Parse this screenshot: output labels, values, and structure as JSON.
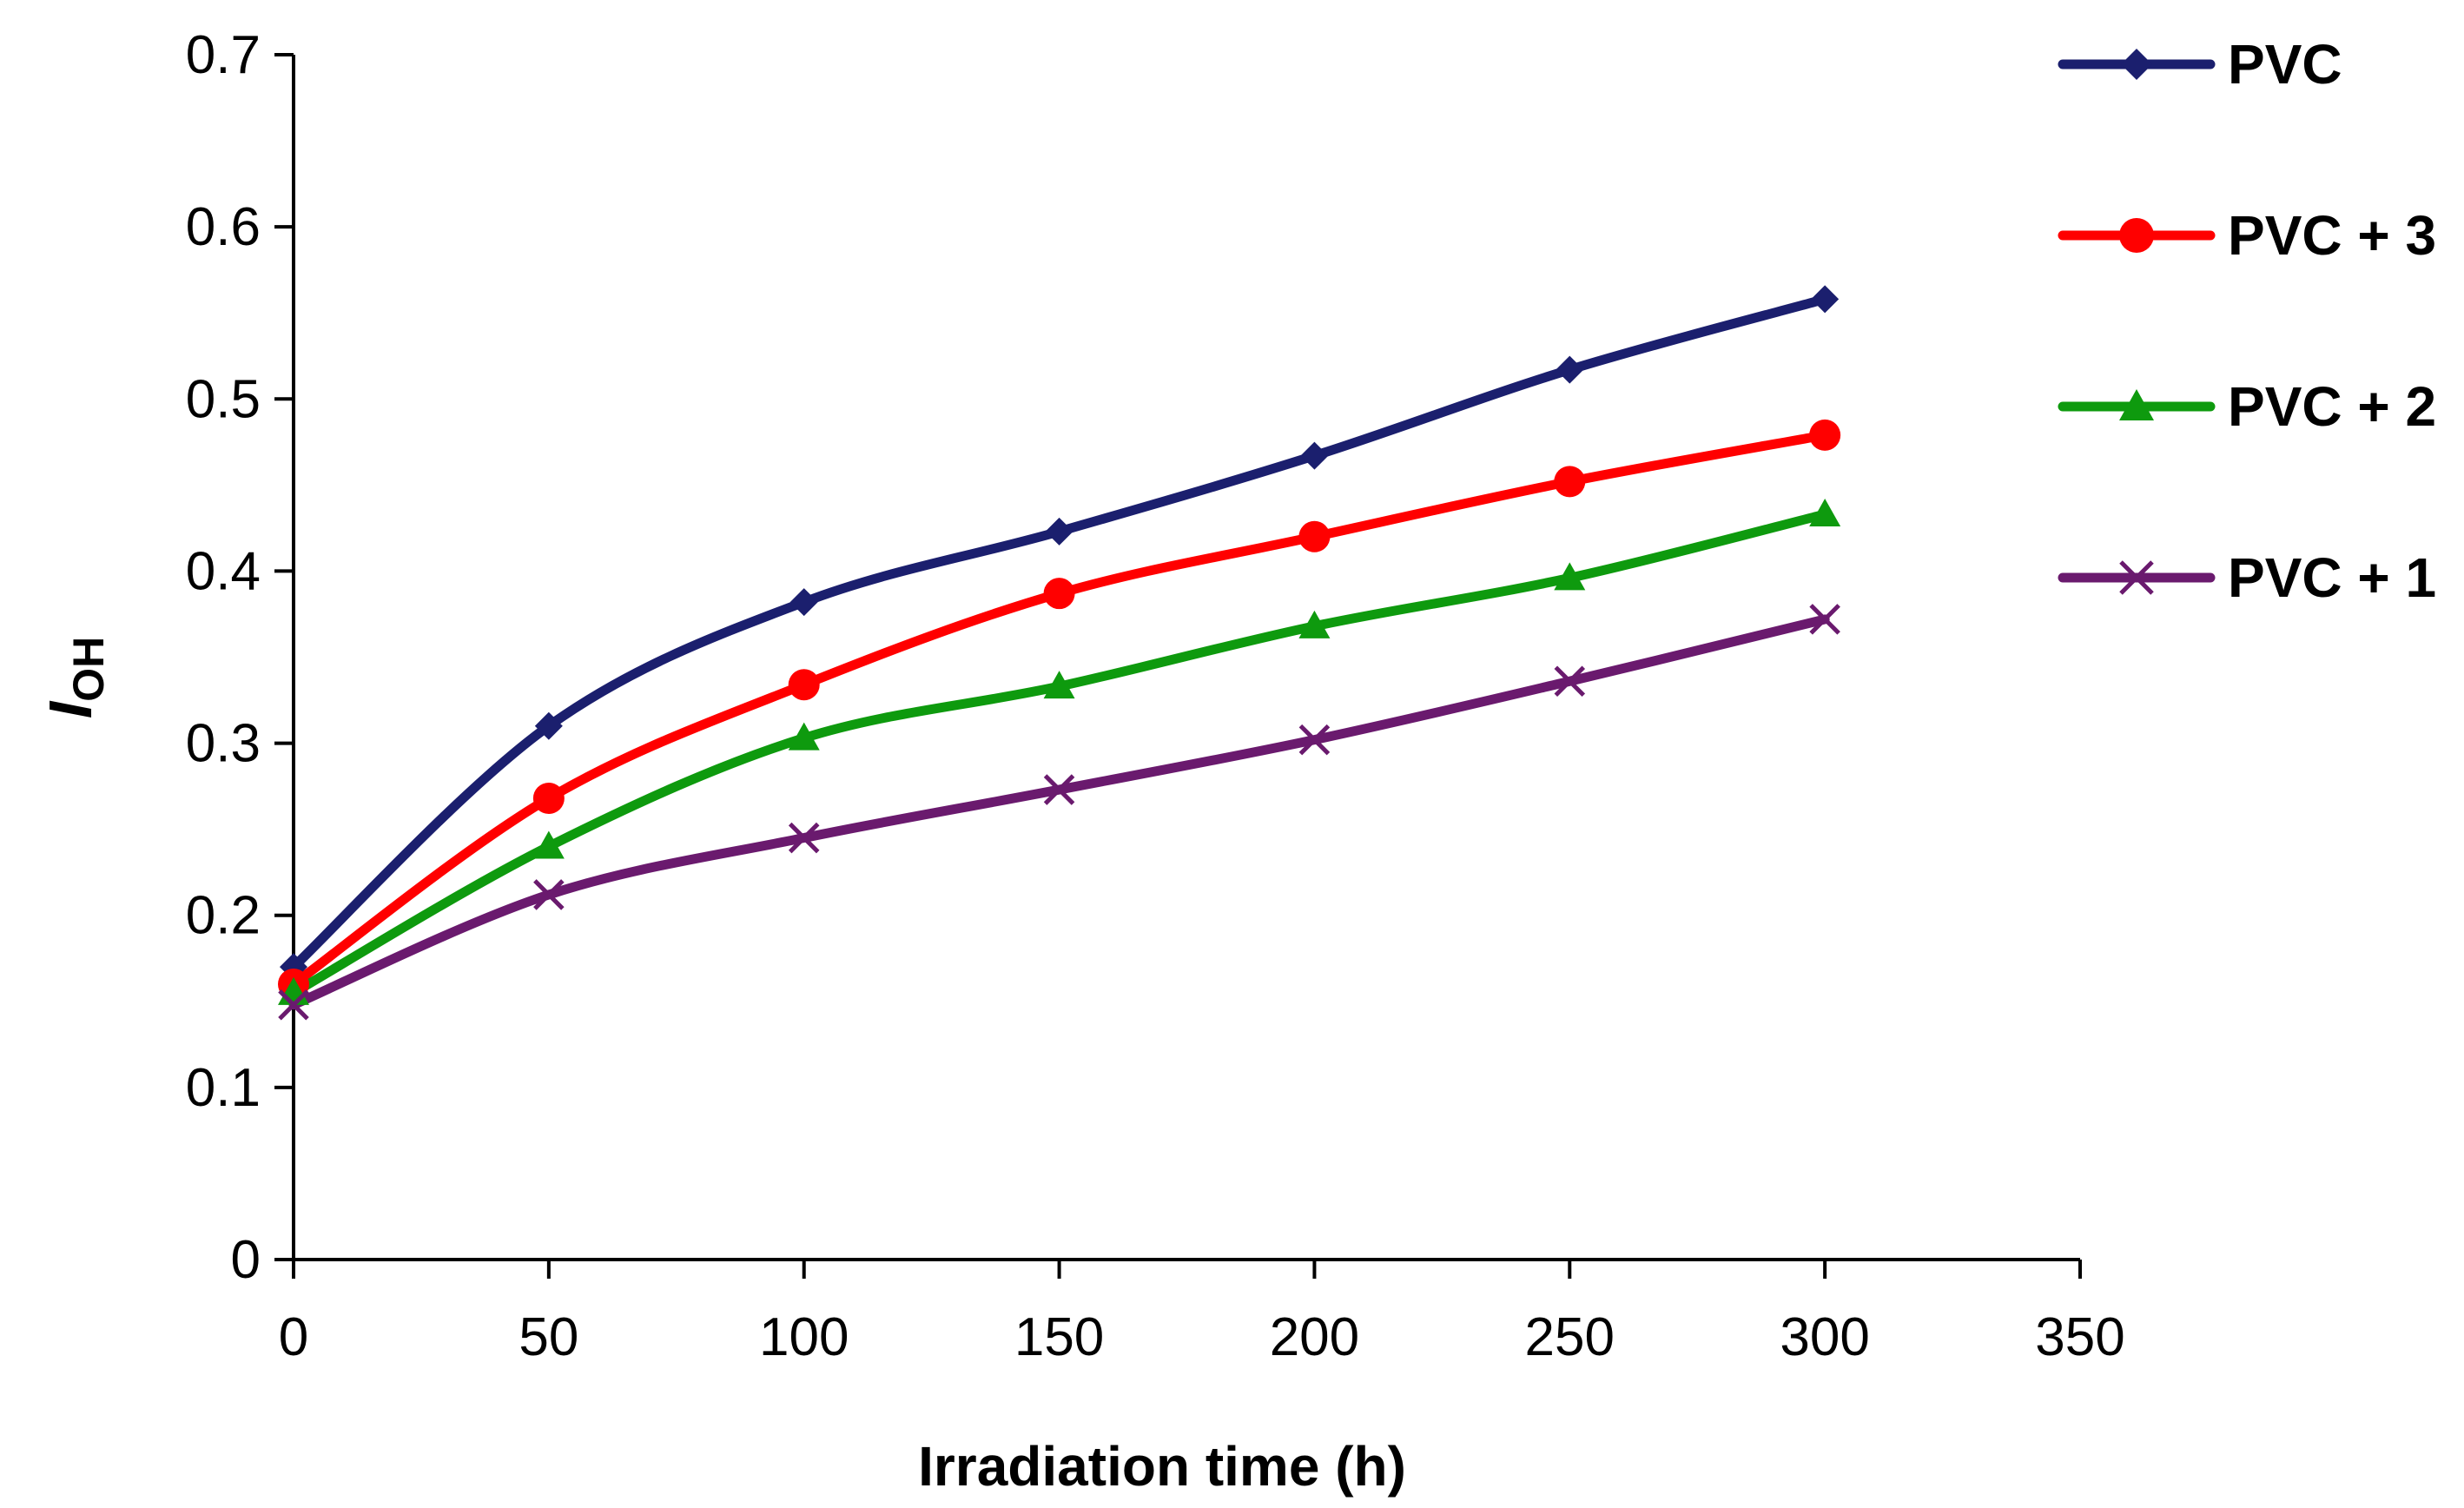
{
  "chart_data": {
    "type": "line",
    "title": "",
    "xlabel": "Irradiation time (h)",
    "ylabel": {
      "main": "I",
      "sub": "OH"
    },
    "xlim": [
      0,
      350
    ],
    "ylim": [
      0,
      0.7
    ],
    "x_ticks": [
      "0",
      "50",
      "100",
      "150",
      "200",
      "250",
      "300",
      "350"
    ],
    "y_ticks": [
      "0",
      "0.1",
      "0.2",
      "0.3",
      "0.4",
      "0.5",
      "0.6",
      "0.7"
    ],
    "x": [
      0,
      50,
      100,
      150,
      200,
      250,
      300
    ],
    "grid": false,
    "legend_position": "top-right",
    "series": [
      {
        "name": "PVC",
        "color": "#1b1f6e",
        "marker": "diamond",
        "values": [
          0.17,
          0.31,
          0.382,
          0.423,
          0.467,
          0.517,
          0.558
        ]
      },
      {
        "name": "PVC + 3",
        "color": "#ff0000",
        "marker": "circle",
        "values": [
          0.16,
          0.268,
          0.334,
          0.387,
          0.42,
          0.452,
          0.479
        ]
      },
      {
        "name": "PVC + 2",
        "color": "#0e9a0e",
        "marker": "triangle",
        "values": [
          0.155,
          0.24,
          0.303,
          0.333,
          0.368,
          0.396,
          0.433
        ]
      },
      {
        "name": "PVC + 1",
        "color": "#6a1a6e",
        "marker": "x",
        "values": [
          0.148,
          0.212,
          0.245,
          0.273,
          0.302,
          0.336,
          0.372
        ]
      }
    ]
  }
}
